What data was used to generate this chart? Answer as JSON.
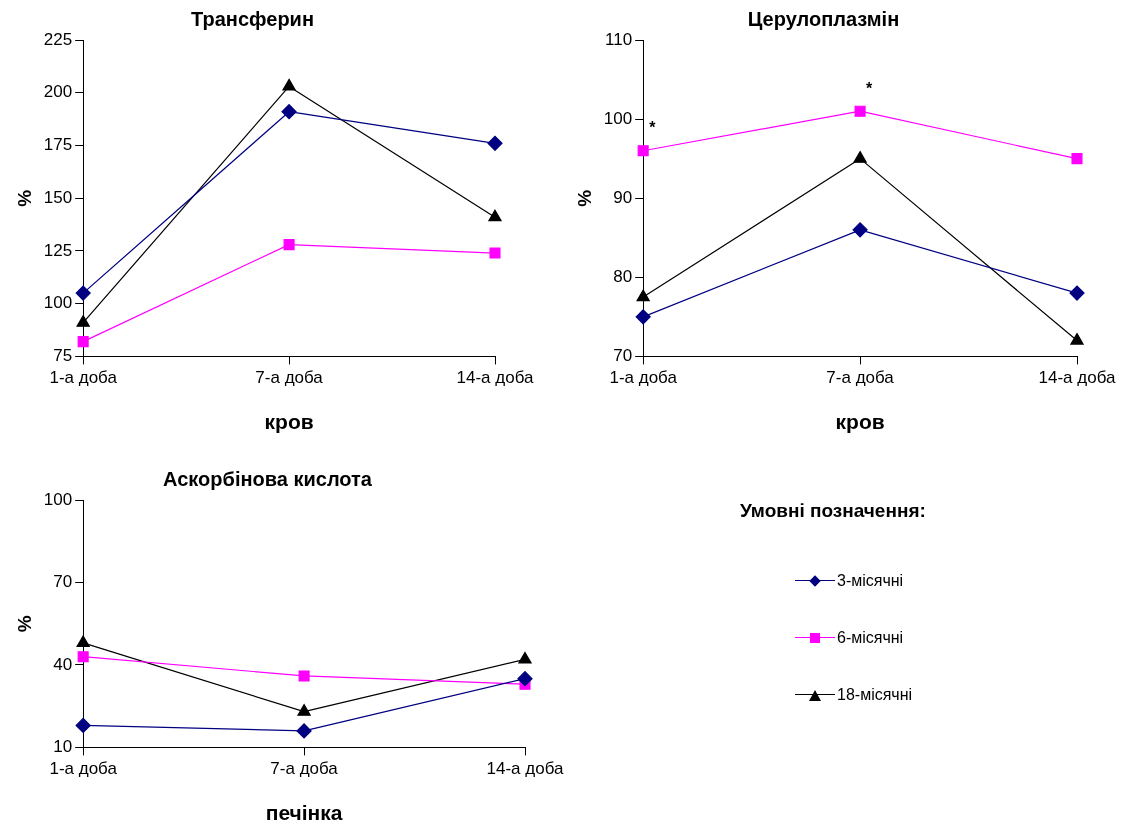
{
  "chart_data": [
    {
      "type": "line",
      "title": "Трансферин",
      "xlabel": "кров",
      "ylabel": "%",
      "categories": [
        "1-а доба",
        "7-а доба",
        "14-а доба"
      ],
      "ylim": [
        75,
        225
      ],
      "yticks": [
        75,
        100,
        125,
        150,
        175,
        200,
        225
      ],
      "grid": false,
      "legend": false,
      "series": [
        {
          "color": "#000080",
          "marker": "diamond",
          "values": [
            105,
            191,
            176
          ]
        },
        {
          "color": "#ff00ff",
          "marker": "square",
          "values": [
            82,
            128,
            124
          ]
        },
        {
          "color": "#000000",
          "marker": "triangle",
          "values": [
            91,
            203,
            141
          ]
        }
      ]
    },
    {
      "type": "line",
      "title": "Церулоплазмін",
      "xlabel": "кров",
      "ylabel": "%",
      "categories": [
        "1-а доба",
        "7-а доба",
        "14-а доба"
      ],
      "ylim": [
        70,
        110
      ],
      "yticks": [
        70,
        80,
        90,
        100,
        110
      ],
      "grid": false,
      "legend": false,
      "annotations": [
        {
          "text": "*",
          "x": "1-а доба",
          "y": 96
        },
        {
          "text": "*",
          "x": "7-а доба",
          "y": 101
        }
      ],
      "series": [
        {
          "color": "#000080",
          "marker": "diamond",
          "values": [
            75,
            86,
            78
          ]
        },
        {
          "color": "#ff00ff",
          "marker": "square",
          "values": [
            96,
            101,
            95
          ]
        },
        {
          "color": "#000000",
          "marker": "triangle",
          "values": [
            77.5,
            95,
            72
          ]
        }
      ]
    },
    {
      "type": "line",
      "title": "Аскорбінова кислота",
      "xlabel": "печінка",
      "ylabel": "%",
      "legend_title": "Умовні позначення:",
      "categories": [
        "1-а доба",
        "7-а доба",
        "14-а доба"
      ],
      "ylim": [
        10,
        100
      ],
      "yticks": [
        10,
        40,
        70,
        100
      ],
      "grid": false,
      "legend": "right",
      "series": [
        {
          "name": "3-місячні",
          "color": "#000080",
          "marker": "diamond",
          "values": [
            18,
            16,
            35
          ]
        },
        {
          "name": "6-місячні",
          "color": "#ff00ff",
          "marker": "square",
          "values": [
            43,
            36,
            33
          ]
        },
        {
          "name": "18-місячні",
          "color": "#000000",
          "marker": "triangle",
          "values": [
            48,
            23,
            42
          ]
        }
      ]
    }
  ]
}
